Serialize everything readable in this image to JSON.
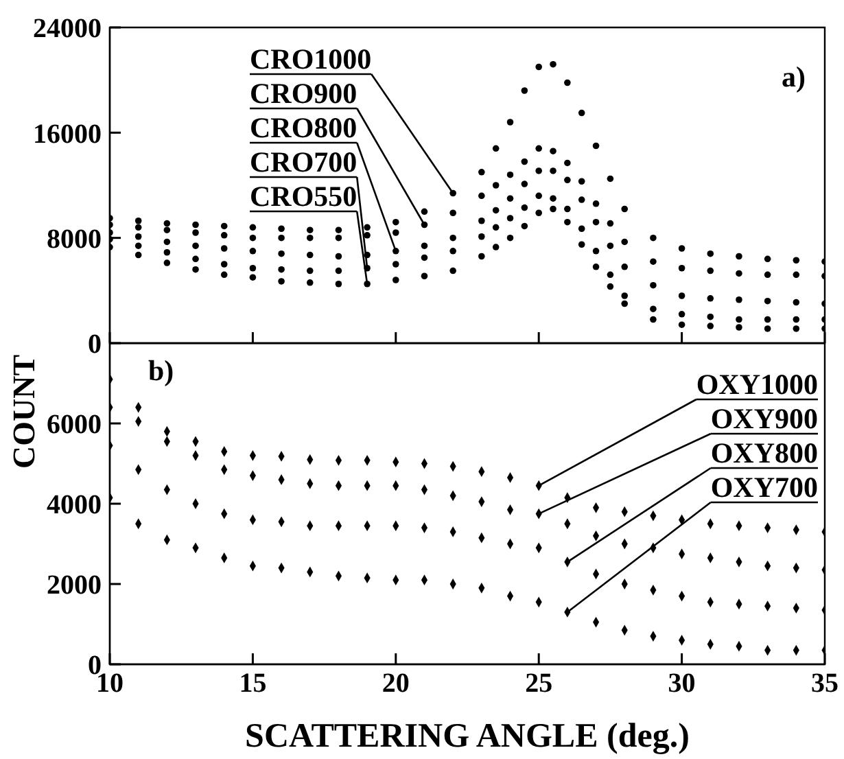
{
  "chart_data": [
    {
      "type": "scatter",
      "marker": "circle",
      "tick_labels": "y",
      "legend": false,
      "xlim": [
        10,
        35
      ],
      "xticks": [
        {
          "value": 10,
          "label": null
        },
        {
          "value": 15,
          "label": null
        },
        {
          "value": 20,
          "label": null
        },
        {
          "value": 25,
          "label": null
        },
        {
          "value": 30,
          "label": null
        },
        {
          "value": 35,
          "label": null
        }
      ],
      "ylim": [
        0,
        24000
      ],
      "yticks": [
        0,
        8000,
        16000,
        24000
      ],
      "ylabel": "COUNT",
      "x": [
        10,
        11,
        12,
        13,
        14,
        15,
        16,
        17,
        18,
        19,
        20,
        21,
        22,
        23,
        23.5,
        24,
        24.5,
        25,
        25.5,
        26,
        26.5,
        27,
        27.5,
        28,
        29,
        30,
        31,
        32,
        33,
        34,
        35
      ],
      "series": [
        {
          "color": "#000000",
          "values": [
            9500,
            9300,
            9100,
            9000,
            8900,
            8800,
            8700,
            8600,
            8600,
            8800,
            9200,
            10000,
            11400,
            13000,
            14800,
            16800,
            19200,
            21000,
            21200,
            19800,
            17500,
            15000,
            12500,
            10200,
            8000,
            7200,
            6800,
            6600,
            6400,
            6300,
            6200
          ]
        },
        {
          "color": "#000000",
          "values": [
            9000,
            8800,
            8600,
            8400,
            8200,
            8000,
            8000,
            8000,
            8000,
            8200,
            8400,
            9000,
            9900,
            11200,
            12000,
            12800,
            13800,
            14800,
            14600,
            13700,
            12300,
            10600,
            9100,
            7700,
            6200,
            5700,
            5500,
            5300,
            5200,
            5200,
            5100
          ]
        },
        {
          "color": "#000000",
          "values": [
            8400,
            8100,
            7700,
            7400,
            7200,
            7000,
            6800,
            6700,
            6600,
            6700,
            7000,
            7400,
            8000,
            9300,
            10100,
            11000,
            12100,
            13100,
            13100,
            12400,
            10900,
            9200,
            7400,
            5800,
            4400,
            3600,
            3400,
            3300,
            3200,
            3100,
            3000
          ]
        },
        {
          "color": "#000000",
          "values": [
            7900,
            7400,
            6900,
            6400,
            6000,
            5700,
            5600,
            5500,
            5500,
            5700,
            6000,
            6500,
            7000,
            8100,
            8800,
            9500,
            10300,
            11200,
            11000,
            10200,
            8700,
            7000,
            5200,
            3600,
            2600,
            2200,
            2000,
            1800,
            1800,
            1800,
            1800
          ]
        },
        {
          "color": "#000000",
          "values": [
            7300,
            6700,
            6100,
            5600,
            5200,
            5000,
            4700,
            4600,
            4500,
            4500,
            4800,
            5100,
            5500,
            6600,
            7300,
            8000,
            8900,
            9900,
            10200,
            9200,
            7500,
            5800,
            4300,
            3000,
            1800,
            1400,
            1300,
            1200,
            1100,
            1100,
            1100
          ]
        }
      ],
      "annotations": [
        {
          "text": "CRO1000",
          "x": 22,
          "y": 11400
        },
        {
          "text": "CRO900",
          "x": 21,
          "y": 9000
        },
        {
          "text": "CRO800",
          "x": 20,
          "y": 7000
        },
        {
          "text": "CRO700",
          "x": 19,
          "y": 5700
        },
        {
          "text": "CRO550",
          "x": 19,
          "y": 4500
        },
        "a)"
      ]
    },
    {
      "type": "scatter",
      "marker": "diamond",
      "legend": false,
      "xlim": [
        10,
        35
      ],
      "xticks": [
        10,
        15,
        20,
        25,
        30,
        35
      ],
      "ylim": [
        0,
        8000
      ],
      "yticks": [
        0,
        2000,
        4000,
        6000
      ],
      "xlabel": "SCATTERING ANGLE (deg.)",
      "x": [
        10,
        11,
        12,
        13,
        14,
        15,
        16,
        17,
        18,
        19,
        20,
        21,
        22,
        23,
        24,
        25,
        26,
        27,
        28,
        29,
        30,
        31,
        32,
        33,
        34,
        35
      ],
      "series": [
        {
          "color": "#000000",
          "values": [
            7100,
            6400,
            5800,
            5550,
            5300,
            5200,
            5180,
            5100,
            5080,
            5080,
            5040,
            5000,
            4930,
            4800,
            4650,
            4450,
            4150,
            3900,
            3800,
            3700,
            3600,
            3500,
            3450,
            3400,
            3350,
            3300
          ]
        },
        {
          "color": "#000000",
          "values": [
            6400,
            6050,
            5550,
            5200,
            4850,
            4700,
            4600,
            4500,
            4450,
            4450,
            4450,
            4350,
            4200,
            4050,
            3850,
            3750,
            3500,
            3200,
            3000,
            2900,
            2750,
            2650,
            2550,
            2450,
            2400,
            2350
          ]
        },
        {
          "color": "#000000",
          "values": [
            5450,
            4850,
            4350,
            4000,
            3750,
            3600,
            3550,
            3450,
            3450,
            3450,
            3450,
            3400,
            3300,
            3150,
            3000,
            2900,
            2550,
            2250,
            2000,
            1850,
            1700,
            1550,
            1500,
            1450,
            1400,
            1350
          ]
        },
        {
          "color": "#000000",
          "values": [
            4150,
            3500,
            3100,
            2900,
            2650,
            2450,
            2400,
            2300,
            2200,
            2150,
            2100,
            2100,
            2000,
            1900,
            1700,
            1550,
            1300,
            1050,
            850,
            700,
            600,
            500,
            450,
            350,
            350,
            350
          ]
        }
      ],
      "annotations": [
        {
          "text": "OXY1000",
          "x": 25,
          "y": 4450
        },
        {
          "text": "OXY900",
          "x": 25,
          "y": 3750
        },
        {
          "text": "OXY800",
          "x": 26,
          "y": 2550
        },
        {
          "text": "OXY700",
          "x": 26,
          "y": 1300
        },
        "b)"
      ]
    }
  ]
}
